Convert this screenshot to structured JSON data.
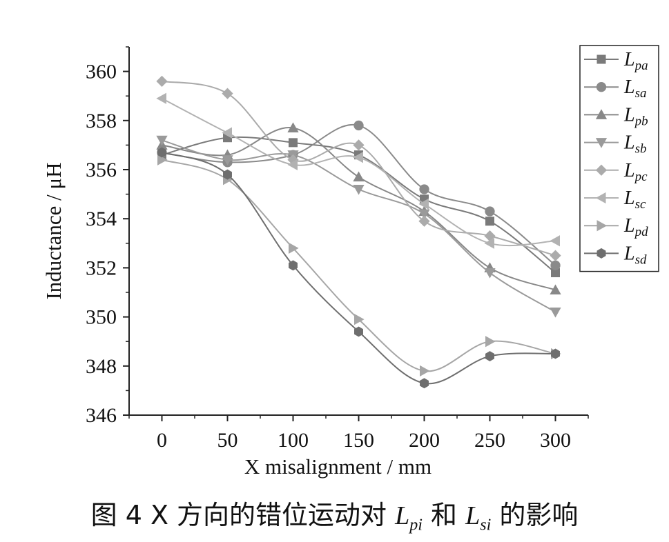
{
  "chart_data": {
    "type": "line",
    "xlabel": "X misalignment / mm",
    "ylabel": "Inductance / μH",
    "x": [
      0,
      50,
      100,
      150,
      200,
      250,
      300
    ],
    "x_ticks": [
      "0",
      "50",
      "100",
      "150",
      "200",
      "250",
      "300"
    ],
    "y_ticks": [
      "346",
      "348",
      "350",
      "352",
      "354",
      "356",
      "358",
      "360"
    ],
    "ylim": [
      346,
      361
    ],
    "xlim": [
      -25,
      325
    ],
    "legend_position": "top-right",
    "grid": false,
    "series": [
      {
        "name": "L",
        "sub": "pa",
        "marker": "square",
        "color": "#7a7a7a",
        "values": [
          356.6,
          357.3,
          357.1,
          356.6,
          354.8,
          353.9,
          351.8
        ]
      },
      {
        "name": "L",
        "sub": "sa",
        "marker": "circle",
        "color": "#8a8a8a",
        "values": [
          356.7,
          356.3,
          356.6,
          357.8,
          355.2,
          354.3,
          352.1
        ]
      },
      {
        "name": "L",
        "sub": "pb",
        "marker": "triangle-up",
        "color": "#888888",
        "values": [
          357.0,
          356.6,
          357.7,
          355.7,
          354.3,
          352.0,
          351.1
        ]
      },
      {
        "name": "L",
        "sub": "sb",
        "marker": "triangle-down",
        "color": "#9a9a9a",
        "values": [
          357.2,
          356.4,
          356.6,
          355.2,
          354.2,
          351.8,
          350.2
        ]
      },
      {
        "name": "L",
        "sub": "pc",
        "marker": "diamond",
        "color": "#ababab",
        "values": [
          359.6,
          359.1,
          356.4,
          357.0,
          353.9,
          353.3,
          352.5
        ]
      },
      {
        "name": "L",
        "sub": "sc",
        "marker": "triangle-left",
        "color": "#b2b2b2",
        "values": [
          358.9,
          357.5,
          356.2,
          356.5,
          354.6,
          353.0,
          353.1
        ]
      },
      {
        "name": "L",
        "sub": "pd",
        "marker": "triangle-right",
        "color": "#a6a6a6",
        "values": [
          356.4,
          355.6,
          352.8,
          349.9,
          347.8,
          349.0,
          348.5
        ]
      },
      {
        "name": "L",
        "sub": "sd",
        "marker": "hexagon",
        "color": "#6e6e6e",
        "values": [
          356.7,
          355.8,
          352.1,
          349.4,
          347.3,
          348.4,
          348.5
        ]
      }
    ]
  },
  "caption": {
    "prefix": "图 4  X 方向的错位运动对 ",
    "var1": "L",
    "sub1": "pi",
    "mid": " 和 ",
    "var2": "L",
    "sub2": "si",
    "suffix": " 的影响"
  }
}
